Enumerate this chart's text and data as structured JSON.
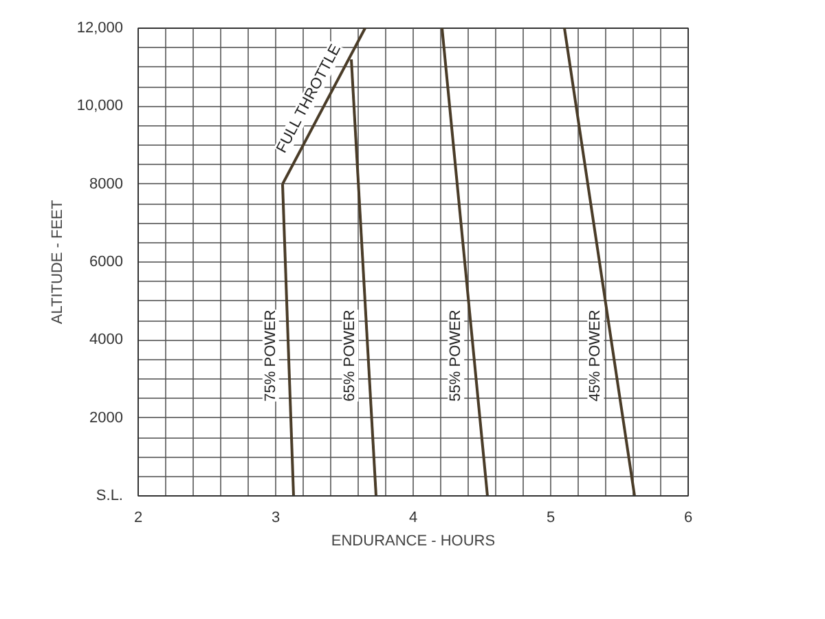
{
  "chart_data": {
    "type": "line",
    "xlabel": "ENDURANCE - HOURS",
    "ylabel": "ALTITUDE - FEET",
    "xlim": [
      2,
      6
    ],
    "ylim": [
      0,
      12000
    ],
    "xticks": [
      2,
      {
        "value": 2.2,
        "label": null
      },
      {
        "value": 2.4,
        "label": null
      },
      {
        "value": 2.6,
        "label": null
      },
      {
        "value": 2.8,
        "label": null
      },
      3,
      {
        "value": 3.2,
        "label": null
      },
      {
        "value": 3.4,
        "label": null
      },
      {
        "value": 3.6,
        "label": null
      },
      {
        "value": 3.8,
        "label": null
      },
      4,
      {
        "value": 4.2,
        "label": null
      },
      {
        "value": 4.4,
        "label": null
      },
      {
        "value": 4.6,
        "label": null
      },
      {
        "value": 4.8,
        "label": null
      },
      5,
      {
        "value": 5.2,
        "label": null
      },
      {
        "value": 5.4,
        "label": null
      },
      {
        "value": 5.6,
        "label": null
      },
      {
        "value": 5.8,
        "label": null
      },
      6
    ],
    "yticks": [
      {
        "value": 0,
        "label": "S.L."
      },
      {
        "value": 500,
        "label": null
      },
      {
        "value": 1000,
        "label": null
      },
      {
        "value": 1500,
        "label": null
      },
      2000,
      {
        "value": 2500,
        "label": null
      },
      {
        "value": 3000,
        "label": null
      },
      {
        "value": 3500,
        "label": null
      },
      4000,
      {
        "value": 4500,
        "label": null
      },
      {
        "value": 5000,
        "label": null
      },
      {
        "value": 5500,
        "label": null
      },
      6000,
      {
        "value": 6500,
        "label": null
      },
      {
        "value": 7000,
        "label": null
      },
      {
        "value": 7500,
        "label": null
      },
      8000,
      {
        "value": 8500,
        "label": null
      },
      {
        "value": 9000,
        "label": null
      },
      {
        "value": 9500,
        "label": null
      },
      {
        "value": 10000,
        "label": "10,000"
      },
      {
        "value": 10500,
        "label": null
      },
      {
        "value": 11000,
        "label": null
      },
      {
        "value": 11500,
        "label": null
      },
      {
        "value": 12000,
        "label": "12,000"
      }
    ],
    "grid": true,
    "marker": "none",
    "line_style": "solid",
    "series": [
      {
        "name": "75% POWER",
        "color": "#4a3c28",
        "x": [
          3.13,
          3.05
        ],
        "values": [
          0,
          8000
        ]
      },
      {
        "name": "FULL THROTTLE",
        "color": "#4a3c28",
        "x": [
          3.05,
          3.65
        ],
        "values": [
          8000,
          12000
        ]
      },
      {
        "name": "65% POWER",
        "color": "#4a3c28",
        "x": [
          3.73,
          3.55
        ],
        "values": [
          0,
          11200
        ]
      },
      {
        "name": "55% POWER",
        "color": "#4a3c28",
        "x": [
          4.54,
          4.21
        ],
        "values": [
          0,
          12000
        ]
      },
      {
        "name": "45% POWER",
        "color": "#4a3c28",
        "x": [
          5.61,
          5.1
        ],
        "values": [
          0,
          12000
        ]
      }
    ]
  }
}
